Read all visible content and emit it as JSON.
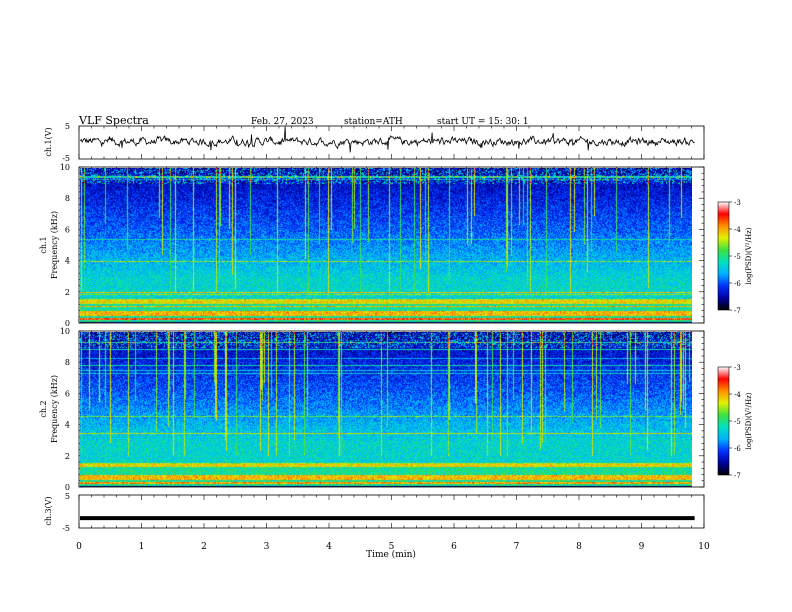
{
  "header": {
    "title": "VLF  Spectra",
    "date": "Feb. 27, 2023",
    "station": "station=ATH",
    "start": "start  UT  =   15: 30: 1"
  },
  "chart_data": [
    {
      "type": "line",
      "name": "ch1-waveform",
      "ylabel": "ch.1(V)",
      "ylim": [
        -5,
        5
      ],
      "yticks": [
        "5",
        "-5"
      ],
      "baseline": 0.3,
      "noise_amplitude": 1.2
    },
    {
      "type": "heatmap",
      "name": "ch1-spectrogram",
      "ylabel": "ch.1\nFrequency (kHz)",
      "ylabel_ch": "ch.1",
      "ylabel_freq": "Frequency (kHz)",
      "ylim": [
        0,
        10
      ],
      "yticks": [
        "0",
        "2",
        "4",
        "6",
        "8",
        "10"
      ],
      "colorbar": {
        "label": "log(PSD)(V²/Hz)",
        "range": [
          -7,
          -3
        ],
        "ticks": [
          "-3",
          "-4",
          "-5",
          "-6",
          "-7"
        ]
      }
    },
    {
      "type": "heatmap",
      "name": "ch2-spectrogram",
      "ylabel_ch": "ch.2",
      "ylabel_freq": "Frequency (kHz)",
      "ylim": [
        0,
        10
      ],
      "yticks": [
        "0",
        "2",
        "4",
        "6",
        "8",
        "10"
      ],
      "colorbar": {
        "label": "log(PSD)(V²/Hz)",
        "range": [
          -7,
          -3
        ],
        "ticks": [
          "-3",
          "-4",
          "-5",
          "-6",
          "-7"
        ]
      }
    },
    {
      "type": "line",
      "name": "ch3-waveform",
      "ylabel": "ch.3(V)",
      "ylim": [
        -5,
        5
      ],
      "yticks": [
        "5",
        "-5"
      ],
      "baseline": -2.0
    }
  ],
  "xaxis": {
    "label": "Time  (min)",
    "xlim": [
      0,
      10
    ],
    "ticks": [
      "0",
      "1",
      "2",
      "3",
      "4",
      "5",
      "6",
      "7",
      "8",
      "9",
      "10"
    ],
    "data_end": 9.85
  },
  "colors": {
    "colormap": [
      "#000000",
      "#0000a0",
      "#0030ff",
      "#00b0ff",
      "#00e0c0",
      "#40e040",
      "#e0f000",
      "#ff9000",
      "#ff0000",
      "#ffffff"
    ]
  }
}
